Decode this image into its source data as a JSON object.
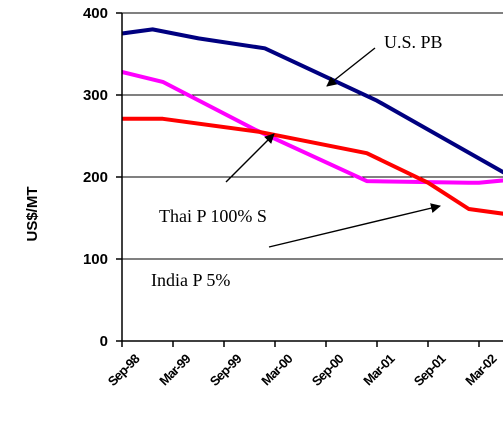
{
  "chart_data": {
    "type": "line",
    "title": "",
    "xlabel": "",
    "ylabel": "US$/MT",
    "ylim": [
      0,
      400
    ],
    "yticks": [
      0,
      100,
      200,
      300,
      400
    ],
    "categories": [
      "Sep-98",
      "Mar-99",
      "Sep-99",
      "Mar-00",
      "Sep-00",
      "Mar-01",
      "Sep-01",
      "Mar-02"
    ],
    "grid": "horizontal",
    "series": [
      {
        "name": "U.S. PB",
        "color": "#000080",
        "points": [
          [
            0,
            375
          ],
          [
            0.6,
            380
          ],
          [
            1.5,
            369
          ],
          [
            2.8,
            357
          ],
          [
            5.0,
            293
          ],
          [
            7.5,
            205
          ]
        ]
      },
      {
        "name": "Thai P 100% S",
        "color": "#ff00ff",
        "points": [
          [
            0,
            328
          ],
          [
            0.8,
            316
          ],
          [
            2.6,
            258
          ],
          [
            4.8,
            195
          ],
          [
            6.8,
            193
          ],
          [
            7.0,
            193
          ],
          [
            7.5,
            196
          ]
        ]
      },
      {
        "name": "India P 5%",
        "color": "#ff0000",
        "points": [
          [
            0,
            271
          ],
          [
            0.8,
            271
          ],
          [
            2.7,
            255
          ],
          [
            4.8,
            229
          ],
          [
            6.0,
            193
          ],
          [
            6.8,
            161
          ],
          [
            7.5,
            155
          ]
        ]
      }
    ],
    "annotations": [
      {
        "text": "U.S. PB",
        "series": 0
      },
      {
        "text": "Thai P 100% S",
        "series": 1
      },
      {
        "text": "India P 5%",
        "series": 2
      }
    ]
  }
}
